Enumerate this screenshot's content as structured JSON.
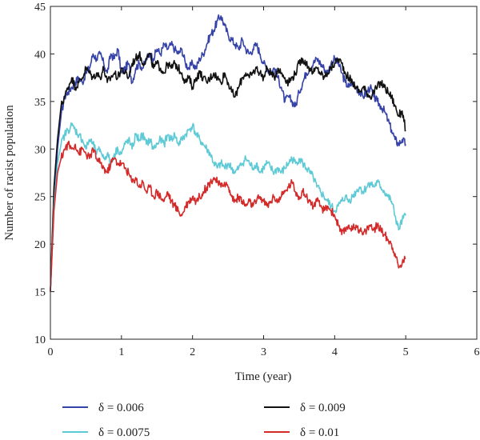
{
  "chart_data": {
    "type": "line",
    "xlabel": "Time (year)",
    "ylabel": "Number of racist population",
    "xlim": [
      0,
      6
    ],
    "ylim": [
      10,
      45
    ],
    "xticks": [
      "0",
      "1",
      "2",
      "3",
      "4",
      "5",
      "6"
    ],
    "yticks": [
      "10",
      "15",
      "20",
      "25",
      "30",
      "35",
      "40",
      "45"
    ],
    "grid": false,
    "legend_position": "bottom",
    "series": [
      {
        "name": "δ = 0.006",
        "color": "#3542a8",
        "x": [
          0.0,
          0.05,
          0.1,
          0.15,
          0.2,
          0.25,
          0.3,
          0.35,
          0.4,
          0.45,
          0.5,
          0.55,
          0.6,
          0.65,
          0.7,
          0.75,
          0.8,
          0.85,
          0.9,
          0.95,
          1.0,
          1.05,
          1.1,
          1.15,
          1.2,
          1.25,
          1.3,
          1.35,
          1.4,
          1.45,
          1.5,
          1.55,
          1.6,
          1.65,
          1.7,
          1.75,
          1.8,
          1.85,
          1.9,
          1.95,
          2.0,
          2.05,
          2.1,
          2.15,
          2.2,
          2.25,
          2.3,
          2.35,
          2.4,
          2.45,
          2.5,
          2.55,
          2.6,
          2.65,
          2.7,
          2.75,
          2.8,
          2.85,
          2.9,
          2.95,
          3.0,
          3.05,
          3.1,
          3.15,
          3.2,
          3.25,
          3.3,
          3.35,
          3.4,
          3.45,
          3.5,
          3.55,
          3.6,
          3.65,
          3.7,
          3.75,
          3.8,
          3.85,
          3.9,
          3.95,
          4.0,
          4.05,
          4.1,
          4.15,
          4.2,
          4.25,
          4.3,
          4.35,
          4.4,
          4.45,
          4.5,
          4.55,
          4.6,
          4.65,
          4.7,
          4.75,
          4.8,
          4.85,
          4.9,
          4.95,
          5.0
        ],
        "y": [
          15.0,
          24.0,
          30.0,
          33.5,
          35.5,
          36.0,
          36.5,
          37.0,
          37.5,
          37.0,
          38.0,
          38.5,
          40.0,
          39.5,
          40.0,
          39.0,
          38.0,
          40.0,
          39.5,
          40.5,
          38.0,
          38.5,
          39.0,
          37.0,
          38.5,
          39.0,
          38.5,
          39.5,
          40.0,
          39.5,
          40.5,
          40.0,
          41.0,
          40.5,
          41.0,
          40.5,
          40.0,
          40.5,
          39.0,
          38.5,
          39.0,
          38.5,
          39.5,
          40.0,
          41.0,
          42.0,
          42.5,
          43.5,
          44.0,
          43.0,
          42.0,
          41.5,
          41.0,
          40.5,
          41.5,
          40.5,
          40.0,
          40.5,
          41.0,
          40.0,
          39.0,
          38.5,
          38.0,
          38.5,
          37.5,
          36.5,
          35.0,
          35.5,
          35.0,
          34.5,
          36.0,
          37.0,
          38.0,
          38.5,
          39.0,
          39.5,
          39.0,
          38.5,
          38.0,
          39.0,
          39.5,
          39.0,
          38.0,
          37.0,
          36.5,
          37.0,
          36.5,
          36.0,
          35.5,
          36.0,
          36.5,
          35.5,
          35.0,
          34.5,
          34.0,
          33.0,
          32.0,
          31.0,
          30.5,
          31.0,
          30.5
        ]
      },
      {
        "name": "δ = 0.009",
        "color": "#111111",
        "x": [
          0.0,
          0.05,
          0.1,
          0.15,
          0.2,
          0.25,
          0.3,
          0.35,
          0.4,
          0.45,
          0.5,
          0.55,
          0.6,
          0.65,
          0.7,
          0.75,
          0.8,
          0.85,
          0.9,
          0.95,
          1.0,
          1.05,
          1.1,
          1.15,
          1.2,
          1.25,
          1.3,
          1.35,
          1.4,
          1.45,
          1.5,
          1.55,
          1.6,
          1.65,
          1.7,
          1.75,
          1.8,
          1.85,
          1.9,
          1.95,
          2.0,
          2.05,
          2.1,
          2.15,
          2.2,
          2.25,
          2.3,
          2.35,
          2.4,
          2.45,
          2.5,
          2.55,
          2.6,
          2.65,
          2.7,
          2.75,
          2.8,
          2.85,
          2.9,
          2.95,
          3.0,
          3.05,
          3.1,
          3.15,
          3.2,
          3.25,
          3.3,
          3.35,
          3.4,
          3.45,
          3.5,
          3.55,
          3.6,
          3.65,
          3.7,
          3.75,
          3.8,
          3.85,
          3.9,
          3.95,
          4.0,
          4.05,
          4.1,
          4.15,
          4.2,
          4.25,
          4.3,
          4.35,
          4.4,
          4.45,
          4.5,
          4.55,
          4.6,
          4.65,
          4.7,
          4.75,
          4.8,
          4.85,
          4.9,
          4.95,
          5.0
        ],
        "y": [
          15.0,
          26.0,
          31.0,
          34.5,
          35.5,
          36.5,
          37.5,
          36.5,
          37.0,
          37.5,
          38.5,
          38.0,
          37.5,
          38.0,
          37.5,
          38.5,
          37.0,
          37.5,
          38.0,
          37.5,
          38.5,
          38.0,
          37.5,
          39.0,
          39.5,
          40.0,
          39.0,
          39.5,
          40.0,
          38.5,
          39.0,
          38.5,
          38.0,
          39.0,
          38.5,
          39.0,
          38.5,
          38.0,
          37.0,
          37.5,
          36.5,
          37.5,
          38.0,
          37.5,
          37.0,
          37.5,
          38.0,
          37.5,
          37.0,
          38.0,
          37.0,
          36.0,
          35.5,
          36.5,
          37.5,
          38.0,
          37.5,
          38.0,
          38.5,
          38.0,
          37.5,
          38.5,
          38.0,
          37.5,
          38.5,
          38.0,
          37.5,
          37.0,
          37.5,
          38.0,
          39.0,
          39.5,
          39.0,
          38.5,
          38.0,
          38.5,
          38.0,
          37.5,
          38.0,
          38.5,
          39.0,
          39.5,
          39.0,
          38.0,
          37.5,
          37.0,
          36.5,
          36.0,
          36.5,
          36.0,
          35.5,
          36.0,
          36.5,
          37.0,
          36.5,
          36.0,
          35.5,
          34.5,
          33.5,
          34.0,
          32.0
        ]
      },
      {
        "name": "δ = 0.0075",
        "color": "#5ecad6",
        "x": [
          0.0,
          0.05,
          0.1,
          0.15,
          0.2,
          0.25,
          0.3,
          0.35,
          0.4,
          0.45,
          0.5,
          0.55,
          0.6,
          0.65,
          0.7,
          0.75,
          0.8,
          0.85,
          0.9,
          0.95,
          1.0,
          1.05,
          1.1,
          1.15,
          1.2,
          1.25,
          1.3,
          1.35,
          1.4,
          1.45,
          1.5,
          1.55,
          1.6,
          1.65,
          1.7,
          1.75,
          1.8,
          1.85,
          1.9,
          1.95,
          2.0,
          2.05,
          2.1,
          2.15,
          2.2,
          2.25,
          2.3,
          2.35,
          2.4,
          2.45,
          2.5,
          2.55,
          2.6,
          2.65,
          2.7,
          2.75,
          2.8,
          2.85,
          2.9,
          2.95,
          3.0,
          3.05,
          3.1,
          3.15,
          3.2,
          3.25,
          3.3,
          3.35,
          3.4,
          3.45,
          3.5,
          3.55,
          3.6,
          3.65,
          3.7,
          3.75,
          3.8,
          3.85,
          3.9,
          3.95,
          4.0,
          4.05,
          4.1,
          4.15,
          4.2,
          4.25,
          4.3,
          4.35,
          4.4,
          4.45,
          4.5,
          4.55,
          4.6,
          4.65,
          4.7,
          4.75,
          4.8,
          4.85,
          4.9,
          4.95,
          5.0
        ],
        "y": [
          15.0,
          24.0,
          28.5,
          30.5,
          31.5,
          32.0,
          32.5,
          32.0,
          31.5,
          31.0,
          30.0,
          31.0,
          30.5,
          29.5,
          30.0,
          29.0,
          29.5,
          28.5,
          29.5,
          30.0,
          29.5,
          30.5,
          31.0,
          30.0,
          31.5,
          31.0,
          31.5,
          30.5,
          31.0,
          30.0,
          30.5,
          31.0,
          30.5,
          31.5,
          31.0,
          31.5,
          30.5,
          31.0,
          31.5,
          32.0,
          32.5,
          31.5,
          31.0,
          30.5,
          30.0,
          29.5,
          28.5,
          28.0,
          28.5,
          28.0,
          28.5,
          28.0,
          27.5,
          28.0,
          28.5,
          29.0,
          28.5,
          28.0,
          28.5,
          27.5,
          28.0,
          28.5,
          28.0,
          27.5,
          28.0,
          27.5,
          28.0,
          28.5,
          29.0,
          28.5,
          29.0,
          28.5,
          28.0,
          27.5,
          27.0,
          26.0,
          25.5,
          25.0,
          24.5,
          24.0,
          23.5,
          24.0,
          24.5,
          25.0,
          24.5,
          25.0,
          25.5,
          26.0,
          25.5,
          26.0,
          26.5,
          26.0,
          26.5,
          26.0,
          25.5,
          25.0,
          24.5,
          23.0,
          21.5,
          22.5,
          23.0
        ]
      },
      {
        "name": "δ = 0.01",
        "color": "#d42a2a",
        "x": [
          0.0,
          0.05,
          0.1,
          0.15,
          0.2,
          0.25,
          0.3,
          0.35,
          0.4,
          0.45,
          0.5,
          0.55,
          0.6,
          0.65,
          0.7,
          0.75,
          0.8,
          0.85,
          0.9,
          0.95,
          1.0,
          1.05,
          1.1,
          1.15,
          1.2,
          1.25,
          1.3,
          1.35,
          1.4,
          1.45,
          1.5,
          1.55,
          1.6,
          1.65,
          1.7,
          1.75,
          1.8,
          1.85,
          1.9,
          1.95,
          2.0,
          2.05,
          2.1,
          2.15,
          2.2,
          2.25,
          2.3,
          2.35,
          2.4,
          2.45,
          2.5,
          2.55,
          2.6,
          2.65,
          2.7,
          2.75,
          2.8,
          2.85,
          2.9,
          2.95,
          3.0,
          3.05,
          3.1,
          3.15,
          3.2,
          3.25,
          3.3,
          3.35,
          3.4,
          3.45,
          3.5,
          3.55,
          3.6,
          3.65,
          3.7,
          3.75,
          3.8,
          3.85,
          3.9,
          3.95,
          4.0,
          4.05,
          4.1,
          4.15,
          4.2,
          4.25,
          4.3,
          4.35,
          4.4,
          4.45,
          4.5,
          4.55,
          4.6,
          4.65,
          4.7,
          4.75,
          4.8,
          4.85,
          4.9,
          4.95,
          5.0
        ],
        "y": [
          15.0,
          23.5,
          27.5,
          29.0,
          30.0,
          30.5,
          30.0,
          30.5,
          29.5,
          30.0,
          29.5,
          29.0,
          30.0,
          29.0,
          28.5,
          28.0,
          27.5,
          28.5,
          29.0,
          28.5,
          28.5,
          28.0,
          27.5,
          26.5,
          27.0,
          26.0,
          26.5,
          25.5,
          26.0,
          25.0,
          25.5,
          25.0,
          24.5,
          25.5,
          24.5,
          24.0,
          23.5,
          23.0,
          24.0,
          24.5,
          25.0,
          24.5,
          25.0,
          25.5,
          26.0,
          26.5,
          27.0,
          26.5,
          26.0,
          26.5,
          26.0,
          25.0,
          24.5,
          25.0,
          24.5,
          24.0,
          24.5,
          24.0,
          24.5,
          25.0,
          24.5,
          24.0,
          24.5,
          25.0,
          24.5,
          25.0,
          25.5,
          26.0,
          26.5,
          25.5,
          25.0,
          25.5,
          25.0,
          24.5,
          24.0,
          24.5,
          24.0,
          23.5,
          24.0,
          23.5,
          23.0,
          22.0,
          21.0,
          21.5,
          22.0,
          21.5,
          22.0,
          21.5,
          21.0,
          21.5,
          22.0,
          21.5,
          22.0,
          21.5,
          21.0,
          20.5,
          20.0,
          19.0,
          17.5,
          18.0,
          18.5
        ]
      }
    ]
  }
}
